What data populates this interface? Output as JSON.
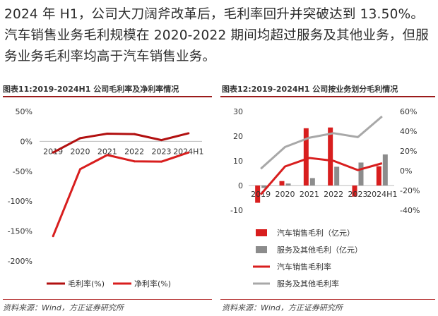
{
  "intro_text": "2024 年 H1，公司大刀阔斧改革后，毛利率回升并突破达到 13.50%。汽车销售业务毛利规模在 2020-2022 期间均超过服务及其他业务，但服务业务毛利率均高于汽车销售业务。",
  "figure_left": {
    "title": "图表11:2019-2024H1 公司毛利率及净利率情况",
    "source": "资料来源：Wind，方正证券研究所"
  },
  "figure_right": {
    "title": "图表12:2019-2024H1 公司按业务划分毛利情况",
    "source": "资料来源：Wind，方正证券研究所"
  },
  "colors": {
    "red": "#d81e1e",
    "dark_red": "#b21010",
    "gray": "#8c8c8c",
    "light_gray": "#a8a8a8",
    "rule": "#9b1b1b"
  },
  "chart_data": [
    {
      "type": "line",
      "title": "",
      "categories": [
        "2019",
        "2020",
        "2021",
        "2022",
        "2023",
        "2024H1"
      ],
      "ylim": [
        -200,
        50
      ],
      "yticks": [
        "50%",
        "0%",
        "-50%",
        "-100%",
        "-150%",
        "-200%"
      ],
      "ytick_values": [
        50,
        0,
        -50,
        -100,
        -150,
        -200
      ],
      "series": [
        {
          "name": "毛利率(%)",
          "values": [
            -18.7,
            5.3,
            12.9,
            12.1,
            2.1,
            13.5
          ]
        },
        {
          "name": "净利率(%)",
          "values": [
            -158.4,
            -46.5,
            -22.8,
            -33.4,
            -33.9,
            -18.7
          ]
        }
      ],
      "legend": "bottom"
    },
    {
      "type": "bar",
      "title": "",
      "categories": [
        "2019",
        "2020",
        "2021",
        "2022",
        "2023",
        "2024H1"
      ],
      "ylim_left": [
        -10,
        30
      ],
      "ylim_right": [
        -40,
        60
      ],
      "yticks_left": [
        "30",
        "20",
        "10",
        "0",
        "-10"
      ],
      "ytick_values_left": [
        30,
        20,
        10,
        0,
        -10
      ],
      "yticks_right": [
        "60%",
        "40%",
        "20%",
        "0%",
        "-20%",
        "-40%"
      ],
      "ytick_values_right": [
        60,
        40,
        20,
        0,
        -20,
        -40
      ],
      "series": [
        {
          "name": "汽车销售毛利（亿元）",
          "kind": "bar",
          "axis": "left",
          "values": [
            -7.0,
            1.8,
            23.2,
            23.5,
            -4.5,
            7.8
          ]
        },
        {
          "name": "服务及其他毛利（亿元）",
          "kind": "bar",
          "axis": "left",
          "values": [
            -1.0,
            0.8,
            3.0,
            7.6,
            9.3,
            12.6
          ]
        },
        {
          "name": "汽车销售毛利率",
          "kind": "line",
          "axis": "right",
          "values": [
            -24.0,
            4.3,
            12.9,
            10.0,
            0.6,
            7.5
          ]
        },
        {
          "name": "服务及其他毛利率",
          "kind": "line",
          "axis": "right",
          "values": [
            2.0,
            24.0,
            33.4,
            38.0,
            34.0,
            55.0
          ]
        }
      ],
      "legend": "bottom"
    }
  ]
}
